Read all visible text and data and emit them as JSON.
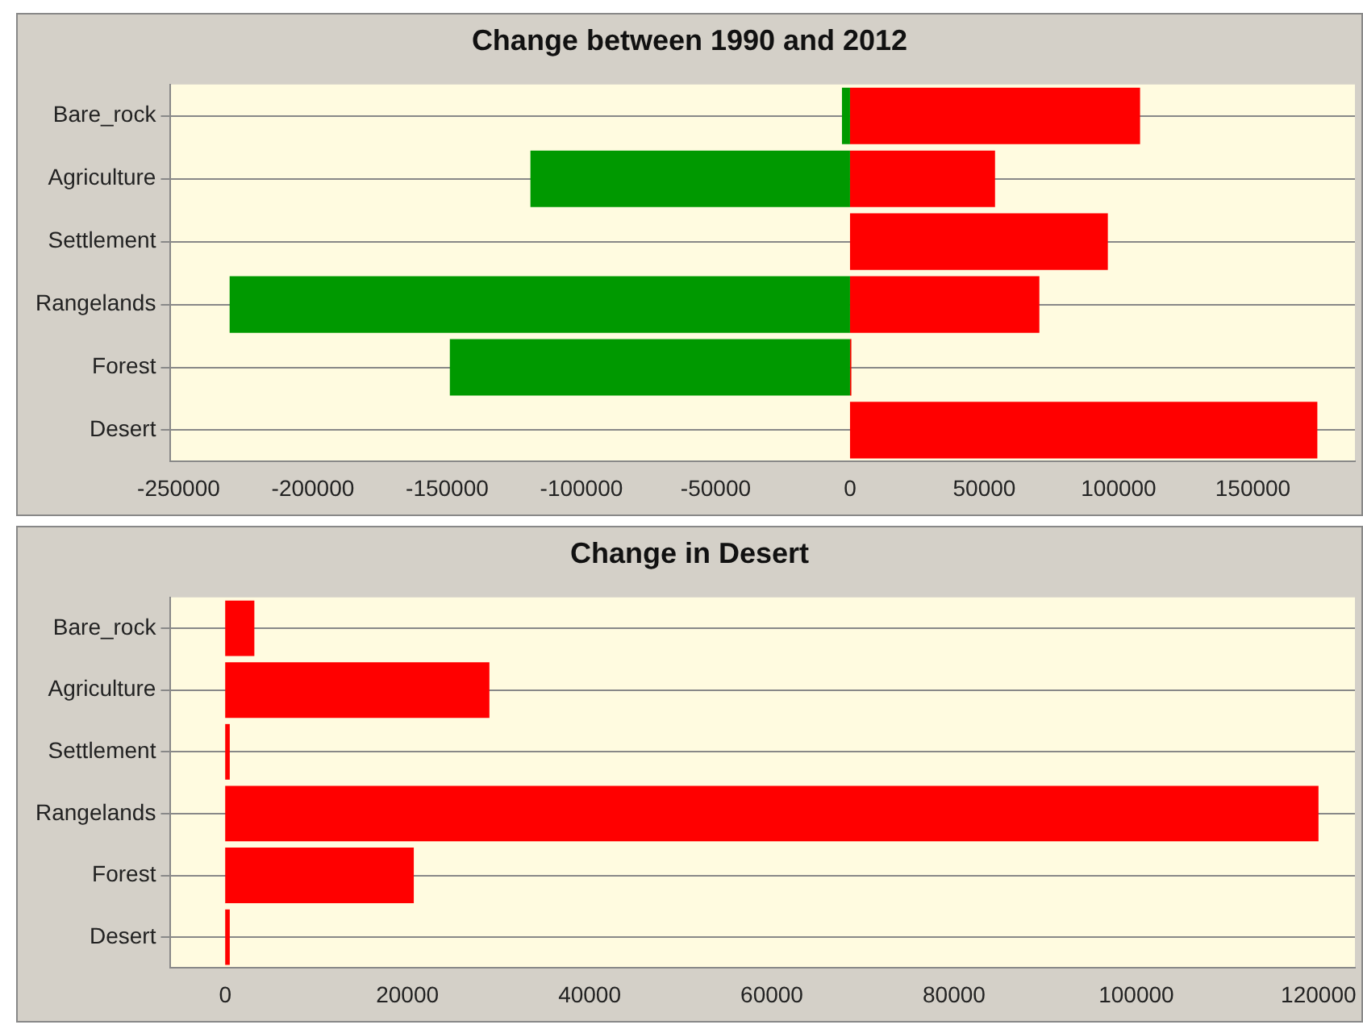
{
  "chart_data": [
    {
      "type": "bar",
      "title": "Change between 1990 and 2012",
      "orientation": "horizontal",
      "stacked": true,
      "grid": "y",
      "categories": [
        "Bare_rock",
        "Agriculture",
        "Settlement",
        "Rangelands",
        "Forest",
        "Desert"
      ],
      "series": [
        {
          "color": "#009900",
          "values": [
            -3000,
            -119000,
            null,
            -231000,
            -149000,
            null
          ]
        },
        {
          "color": "#ff0000",
          "values": [
            108000,
            54000,
            96000,
            70500,
            500,
            174000
          ]
        }
      ],
      "xlim": [
        -253000,
        188000
      ],
      "xticks": [
        -250000,
        -200000,
        -150000,
        -100000,
        -50000,
        0,
        50000,
        100000,
        150000
      ]
    },
    {
      "type": "bar",
      "title": "Change in Desert",
      "orientation": "horizontal",
      "grid": "y",
      "categories": [
        "Bare_rock",
        "Agriculture",
        "Settlement",
        "Rangelands",
        "Forest",
        "Desert"
      ],
      "series": [
        {
          "color": "#ff0000",
          "values": [
            3200,
            29000,
            500,
            120000,
            20700,
            500
          ]
        }
      ],
      "xlim": [
        -6000,
        124000
      ],
      "xticks": [
        0,
        20000,
        40000,
        60000,
        80000,
        100000,
        120000
      ]
    }
  ]
}
